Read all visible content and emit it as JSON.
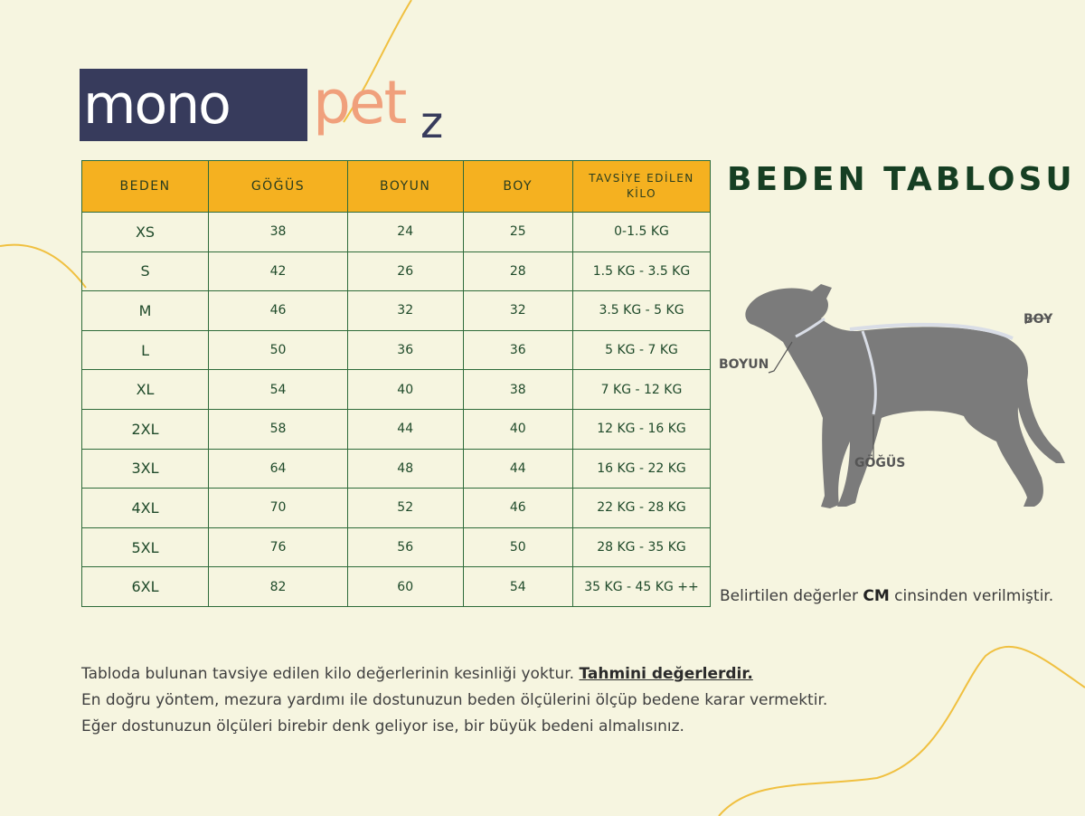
{
  "brand": {
    "mono": "mono",
    "pet": "pet",
    "z": "z"
  },
  "colors": {
    "header": "#f5b120",
    "border": "#2e6b3a",
    "title": "#163f23",
    "background": "#f6f5e0"
  },
  "title": "BEDEN TABLOSU",
  "table": {
    "headers": [
      "BEDEN",
      "GÖĞÜS",
      "BOYUN",
      "BOY",
      "TAVSİYE EDİLEN KİLO"
    ],
    "rows": [
      [
        "XS",
        "38",
        "24",
        "25",
        "0-1.5 KG"
      ],
      [
        "S",
        "42",
        "26",
        "28",
        "1.5 KG - 3.5 KG"
      ],
      [
        "M",
        "46",
        "32",
        "32",
        "3.5 KG - 5 KG"
      ],
      [
        "L",
        "50",
        "36",
        "36",
        "5 KG - 7 KG"
      ],
      [
        "XL",
        "54",
        "40",
        "38",
        "7 KG - 12 KG"
      ],
      [
        "2XL",
        "58",
        "44",
        "40",
        "12 KG - 16 KG"
      ],
      [
        "3XL",
        "64",
        "48",
        "44",
        "16 KG - 22 KG"
      ],
      [
        "4XL",
        "70",
        "52",
        "46",
        "22 KG - 28 KG"
      ],
      [
        "5XL",
        "76",
        "56",
        "50",
        "28 KG - 35 KG"
      ],
      [
        "6XL",
        "82",
        "60",
        "54",
        "35 KG - 45 KG ++"
      ]
    ]
  },
  "diagram": {
    "boy": "BOY",
    "boyun": "BOYUN",
    "gogus": "GÖĞÜS"
  },
  "unit_note": {
    "pre": "Belirtilen değerler ",
    "bold": "CM",
    "post": " cinsinden verilmiştir."
  },
  "notes": {
    "line1_pre": "Tabloda  bulunan tavsiye edilen kilo değerlerinin kesinliği yoktur. ",
    "line1_em": "Tahmini değerlerdir.",
    "line2": "En doğru yöntem, mezura yardımı ile dostunuzun beden ölçülerini ölçüp bedene karar vermektir.",
    "line3": "Eğer dostunuzun ölçüleri birebir denk geliyor ise, bir büyük bedeni almalısınız."
  }
}
